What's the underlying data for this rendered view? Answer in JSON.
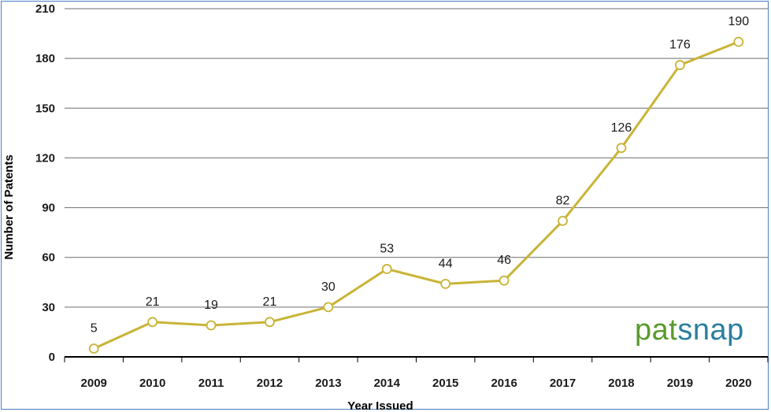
{
  "chart_data": {
    "type": "line",
    "title": "",
    "xlabel": "Year Issued",
    "ylabel": "Number of Patents",
    "categories": [
      "2009",
      "2010",
      "2011",
      "2012",
      "2013",
      "2014",
      "2015",
      "2016",
      "2017",
      "2018",
      "2019",
      "2020"
    ],
    "series": [
      {
        "values": [
          5,
          21,
          19,
          21,
          30,
          53,
          44,
          46,
          82,
          126,
          176,
          190
        ]
      }
    ],
    "ylim": [
      0,
      210
    ],
    "yticks": [
      0,
      30,
      60,
      90,
      120,
      150,
      180,
      210
    ],
    "grid": true,
    "line_color": "#c9b436",
    "marker": "open-circle"
  },
  "logo": {
    "part1": "pat",
    "part2": "snap"
  }
}
